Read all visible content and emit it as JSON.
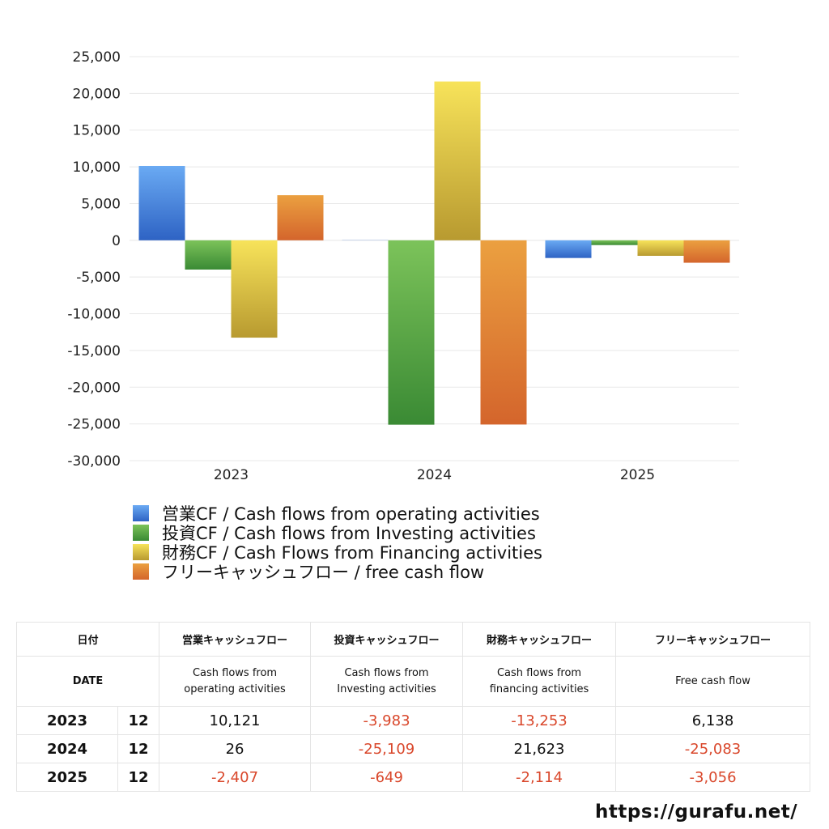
{
  "chart_data": {
    "type": "bar",
    "categories": [
      "2023",
      "2024",
      "2025"
    ],
    "ylim": [
      -30000,
      25000
    ],
    "yticks": [
      25000,
      20000,
      15000,
      10000,
      5000,
      0,
      -5000,
      -10000,
      -15000,
      -20000,
      -25000,
      -30000
    ],
    "ytick_labels": [
      "25,000",
      "20,000",
      "15,000",
      "10,000",
      "5,000",
      "0",
      "-5,000",
      "-10,000",
      "-15,000",
      "-20,000",
      "-25,000",
      "-30,000"
    ],
    "grid": true,
    "legend_position": "bottom-left",
    "series": [
      {
        "name": "営業CF / Cash flows from operating activities",
        "values": [
          10121,
          26,
          -2407
        ],
        "color_top": "#6aaaf3",
        "color_bottom": "#2e63c4"
      },
      {
        "name": "投資CF / Cash flows from Investing activities",
        "values": [
          -3983,
          -25109,
          -649
        ],
        "color_top": "#7cc35a",
        "color_bottom": "#3a8a34"
      },
      {
        "name": "財務CF / Cash Flows from Financing activities",
        "values": [
          -13253,
          21623,
          -2114
        ],
        "color_top": "#f7e35a",
        "color_bottom": "#b89a30"
      },
      {
        "name": "フリーキャッシュフロー / free cash flow",
        "values": [
          6138,
          -25083,
          -3056
        ],
        "color_top": "#eba040",
        "color_bottom": "#d4652c"
      }
    ]
  },
  "table": {
    "header_jp": {
      "date": "日付",
      "operating": "営業キャッシュフロー",
      "investing": "投資キャッシュフロー",
      "financing": "財務キャッシュフロー",
      "free": "フリーキャッシュフロー"
    },
    "header_en": {
      "date": "DATE",
      "operating_1": "Cash flows from",
      "operating_2": "operating activities",
      "investing_1": "Cash flows from",
      "investing_2": "Investing activities",
      "financing_1": "Cash flows from",
      "financing_2": "financing activities",
      "free": "Free cash flow"
    },
    "rows": [
      {
        "year": "2023",
        "month": "12",
        "operating": "10,121",
        "investing": "-3,983",
        "financing": "-13,253",
        "free": "6,138"
      },
      {
        "year": "2024",
        "month": "12",
        "operating": "26",
        "investing": "-25,109",
        "financing": "21,623",
        "free": "-25,083"
      },
      {
        "year": "2025",
        "month": "12",
        "operating": "-2,407",
        "investing": "-649",
        "financing": "-2,114",
        "free": "-3,056"
      }
    ]
  },
  "site": "https://gurafu.net/"
}
